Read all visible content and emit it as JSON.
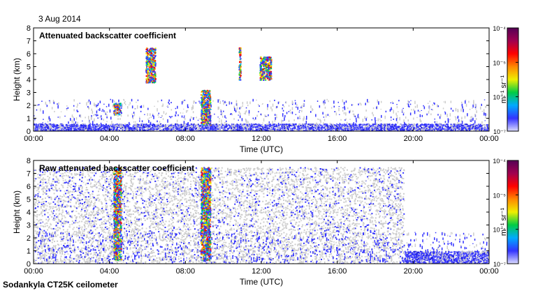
{
  "page": {
    "date": "3 Aug 2014",
    "instrument": "Sodankyla CT25K ceilometer"
  },
  "chart_data": [
    {
      "type": "heatmap",
      "title": "Attenuated backscatter coefficient",
      "xlabel": "Time (UTC)",
      "ylabel": "Height (km)",
      "xlim": [
        0,
        24
      ],
      "ylim": [
        0,
        8
      ],
      "x_ticks": [
        "00:00",
        "04:00",
        "08:00",
        "12:00",
        "16:00",
        "20:00",
        "00:00"
      ],
      "x_tick_values": [
        0,
        4,
        8,
        12,
        16,
        20,
        24
      ],
      "y_ticks": [
        0,
        1,
        2,
        3,
        4,
        5,
        6,
        7,
        8
      ],
      "colorbar": {
        "label": "m⁻¹ sr⁻¹",
        "scale": "log",
        "ticks": [
          "10⁻⁷",
          "10⁻⁶",
          "10⁻⁵",
          "10⁻⁴"
        ],
        "tick_values": [
          1e-07,
          1e-06,
          1e-05,
          0.0001
        ],
        "colors": [
          "#dcdcff",
          "#3333ff",
          "#00aaff",
          "#00cc44",
          "#eeee00",
          "#ff8800",
          "#ff0000",
          "#a00050",
          "#550055"
        ]
      },
      "features": [
        {
          "kind": "boundary layer",
          "t_start": 0,
          "t_end": 24,
          "height_top": 0.6
        },
        {
          "kind": "cloud",
          "t_start": 4.2,
          "t_end": 4.6,
          "height_bottom": 1.3,
          "height_top": 2.2
        },
        {
          "kind": "cloud",
          "t_start": 8.8,
          "t_end": 9.3,
          "height_bottom": 0.5,
          "height_top": 3.2
        },
        {
          "kind": "cloud",
          "t_start": 5.9,
          "t_end": 6.4,
          "height_bottom": 3.8,
          "height_top": 6.5
        },
        {
          "kind": "cloud",
          "t_start": 10.8,
          "t_end": 10.9,
          "height_bottom": 4.0,
          "height_top": 6.5
        },
        {
          "kind": "cloud",
          "t_start": 11.9,
          "t_end": 12.5,
          "height_bottom": 4.0,
          "height_top": 5.8
        }
      ]
    },
    {
      "type": "heatmap",
      "title": "Raw attenuated backscatter coefficient",
      "xlabel": "Time (UTC)",
      "ylabel": "Height (km)",
      "xlim": [
        0,
        24
      ],
      "ylim": [
        0,
        8
      ],
      "x_ticks": [
        "00:00",
        "04:00",
        "08:00",
        "12:00",
        "16:00",
        "20:00",
        "00:00"
      ],
      "x_tick_values": [
        0,
        4,
        8,
        12,
        16,
        20,
        24
      ],
      "y_ticks": [
        0,
        1,
        2,
        3,
        4,
        5,
        6,
        7,
        8
      ],
      "colorbar": {
        "label": "m⁻¹ sr⁻¹",
        "scale": "log",
        "ticks": [
          "10⁻⁷",
          "10⁻⁶",
          "10⁻⁵",
          "10⁻⁴"
        ],
        "tick_values": [
          1e-07,
          1e-06,
          1e-05,
          0.0001
        ],
        "colors": [
          "#dcdcff",
          "#3333ff",
          "#00aaff",
          "#00cc44",
          "#eeee00",
          "#ff8800",
          "#ff0000",
          "#a00050",
          "#550055"
        ]
      },
      "features": [
        {
          "kind": "noise",
          "t_start": 0,
          "t_end": 19.5,
          "height_bottom": 0,
          "height_top": 7.5
        },
        {
          "kind": "cloud",
          "t_start": 4.2,
          "t_end": 4.6,
          "height_bottom": 0.3,
          "height_top": 7.5
        },
        {
          "kind": "cloud",
          "t_start": 8.8,
          "t_end": 9.3,
          "height_bottom": 0.3,
          "height_top": 7.5
        },
        {
          "kind": "boundary layer",
          "t_start": 19.5,
          "t_end": 24,
          "height_top": 1.0
        }
      ]
    }
  ]
}
